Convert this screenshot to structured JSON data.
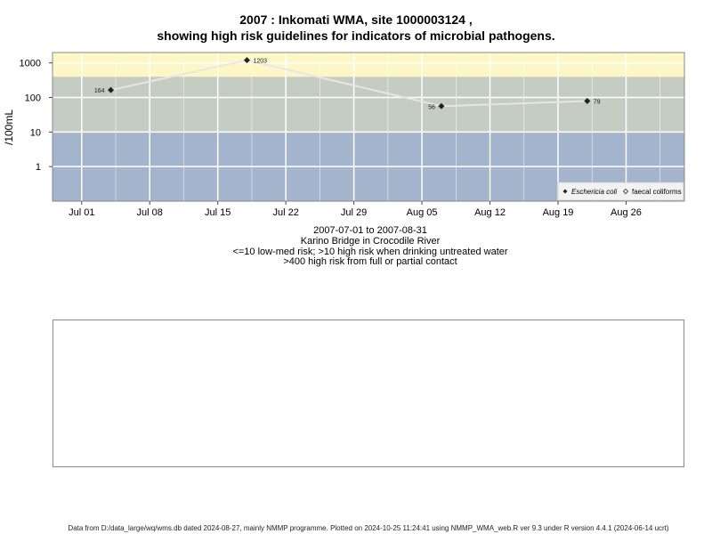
{
  "title_line1": "2007 : Inkomati WMA, site 1000003124 ,",
  "title_line2": "showing high risk guidelines for indicators of microbial pathogens.",
  "caption": {
    "line1": "2007-07-01 to 2007-08-31",
    "line2": "Karino Bridge in Crocodile River",
    "line3": "<=10 low-med risk; >10 high risk when drinking untreated water",
    "line4": ">400 high risk from full or partial contact"
  },
  "footer": "Data from D:/data_large/wq/wms.db dated 2024-08-27, mainly NMMP programme. Plotted on 2024-10-25 11:24:41 using NMMP_WMA_web.R ver 9.3 under R version 4.4.1 (2024-06-14 ucrt)",
  "colors": {
    "band_low": "#a3b4cc",
    "band_high": "#c5cdc3",
    "band_contact": "#fdf6c5",
    "line": "#e6e6e6",
    "point": "#222222"
  },
  "chart_data": {
    "type": "line",
    "ylabel": "/100mL",
    "y_scale": "log10",
    "ylim": [
      0.1,
      2000
    ],
    "yticks": [
      1,
      10,
      100,
      1000
    ],
    "ytick_labels": [
      "1",
      "10",
      "100",
      "1000"
    ],
    "xlim": [
      "2007-06-28",
      "2007-09-01"
    ],
    "xticks": [
      "2007-07-01",
      "2007-07-08",
      "2007-07-15",
      "2007-07-22",
      "2007-07-29",
      "2007-08-05",
      "2007-08-12",
      "2007-08-19",
      "2007-08-26"
    ],
    "xtick_labels": [
      "Jul 01",
      "Jul 08",
      "Jul 15",
      "Jul 22",
      "Jul 29",
      "Aug 05",
      "Aug 12",
      "Aug 19",
      "Aug 26"
    ],
    "bands": [
      {
        "from": 0.1,
        "to": 10,
        "color": "#a3b4cc"
      },
      {
        "from": 10,
        "to": 400,
        "color": "#c5cdc3"
      },
      {
        "from": 400,
        "to": 2000,
        "color": "#fdf6c5"
      }
    ],
    "grid": true,
    "legend_position": "bottom-right",
    "series": [
      {
        "name": "Eschericia coli",
        "marker": "diamond",
        "x": [
          "2007-07-04",
          "2007-07-18",
          "2007-08-07",
          "2007-08-22"
        ],
        "y": [
          164,
          1203,
          56,
          79
        ],
        "labels": [
          "164",
          "1203",
          "56",
          "79"
        ]
      },
      {
        "name": "faecal coliforms",
        "marker": "open-diamond",
        "x": [],
        "y": []
      }
    ]
  }
}
